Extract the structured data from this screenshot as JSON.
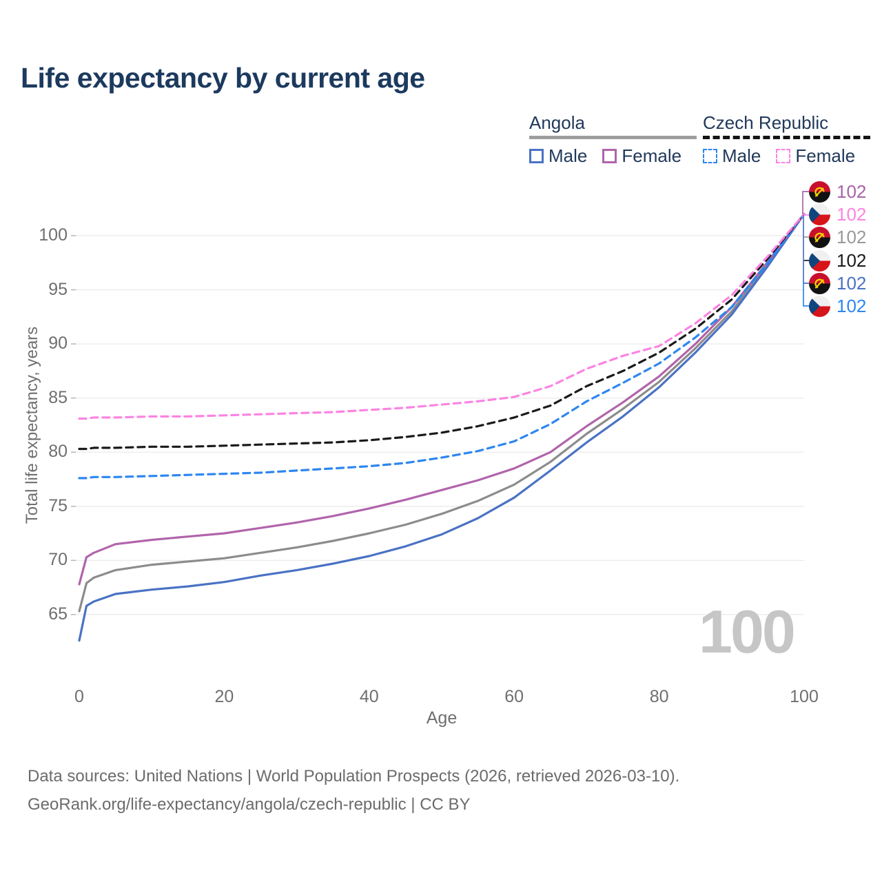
{
  "title": "Life expectancy by current age",
  "legend": {
    "group1_label": "Angola",
    "group1_line_color": "#9e9e9e",
    "group2_label": "Czech Republic",
    "group2_line_color": "#141414",
    "male_label": "Male",
    "female_label": "Female"
  },
  "axes": {
    "x_label": "Age",
    "y_label": "Total life expectancy, years",
    "x_ticks": [
      0,
      20,
      40,
      60,
      80,
      100
    ],
    "y_ticks": [
      65,
      70,
      75,
      80,
      85,
      90,
      95,
      100
    ]
  },
  "endpoints": [
    {
      "flag": "angola",
      "value": "102",
      "color": "#a962a9"
    },
    {
      "flag": "czech",
      "value": "102",
      "color": "#fc83e2"
    },
    {
      "flag": "angola",
      "value": "102",
      "color": "#999999"
    },
    {
      "flag": "czech",
      "value": "102",
      "color": "#1a1a1a"
    },
    {
      "flag": "angola",
      "value": "102",
      "color": "#4a72c4"
    },
    {
      "flag": "czech",
      "value": "102",
      "color": "#2e86f0"
    }
  ],
  "watermark": "100",
  "footer": {
    "line1": "Data sources: United Nations | World Population Prospects (2026, retrieved 2026-03-10).",
    "line2": "GeoRank.org/life-expectancy/angola/czech-republic | CC BY"
  },
  "chart_data": {
    "type": "line",
    "title": "Life expectancy by current age",
    "xlabel": "Age",
    "ylabel": "Total life expectancy, years",
    "xlim": [
      0,
      100
    ],
    "ylim": [
      62,
      103
    ],
    "grid": "horizontal",
    "legend_position": "top-right",
    "x": [
      0,
      1,
      2,
      5,
      10,
      15,
      20,
      25,
      30,
      35,
      40,
      45,
      50,
      55,
      60,
      65,
      70,
      75,
      80,
      85,
      90,
      95,
      100
    ],
    "series": [
      {
        "name": "Angola Male",
        "style": "solid",
        "color": "#4a72c4",
        "values": [
          62.6,
          65.8,
          66.2,
          66.9,
          67.3,
          67.6,
          68.0,
          68.6,
          69.1,
          69.7,
          70.4,
          71.3,
          72.4,
          73.9,
          75.8,
          78.3,
          80.9,
          83.3,
          86.0,
          89.2,
          92.7,
          97.2,
          102
        ]
      },
      {
        "name": "Angola Female",
        "style": "solid",
        "color": "#b164ab",
        "values": [
          67.8,
          70.3,
          70.7,
          71.5,
          71.9,
          72.2,
          72.5,
          73.0,
          73.5,
          74.1,
          74.8,
          75.6,
          76.5,
          77.4,
          78.5,
          80.0,
          82.4,
          84.6,
          87.0,
          90.0,
          93.4,
          97.6,
          102
        ]
      },
      {
        "name": "Angola Both sexes",
        "style": "solid",
        "color": "#8c8c8c",
        "values": [
          65.3,
          67.9,
          68.4,
          69.1,
          69.6,
          69.9,
          70.2,
          70.7,
          71.2,
          71.8,
          72.5,
          73.3,
          74.3,
          75.5,
          77.0,
          79.1,
          81.7,
          84.0,
          86.5,
          89.6,
          93.0,
          97.4,
          102
        ]
      },
      {
        "name": "Czech Republic Male",
        "style": "dashed",
        "color": "#2e86f0",
        "values": [
          77.6,
          77.6,
          77.7,
          77.7,
          77.8,
          77.9,
          78.0,
          78.1,
          78.3,
          78.5,
          78.7,
          79.0,
          79.5,
          80.1,
          81.0,
          82.6,
          84.7,
          86.4,
          88.2,
          90.6,
          93.4,
          97.5,
          102
        ]
      },
      {
        "name": "Czech Republic Female",
        "style": "dashed",
        "color": "#fc83e2",
        "values": [
          83.1,
          83.1,
          83.2,
          83.2,
          83.3,
          83.3,
          83.4,
          83.5,
          83.6,
          83.7,
          83.9,
          84.1,
          84.4,
          84.7,
          85.1,
          86.1,
          87.7,
          88.9,
          89.8,
          91.9,
          94.5,
          98.1,
          102
        ]
      },
      {
        "name": "Czech Republic Both sexes",
        "style": "dashed",
        "color": "#1a1a1a",
        "values": [
          80.3,
          80.3,
          80.4,
          80.4,
          80.5,
          80.5,
          80.6,
          80.7,
          80.8,
          80.9,
          81.1,
          81.4,
          81.8,
          82.4,
          83.2,
          84.3,
          86.1,
          87.5,
          89.2,
          91.4,
          94.1,
          97.9,
          102
        ]
      }
    ]
  }
}
